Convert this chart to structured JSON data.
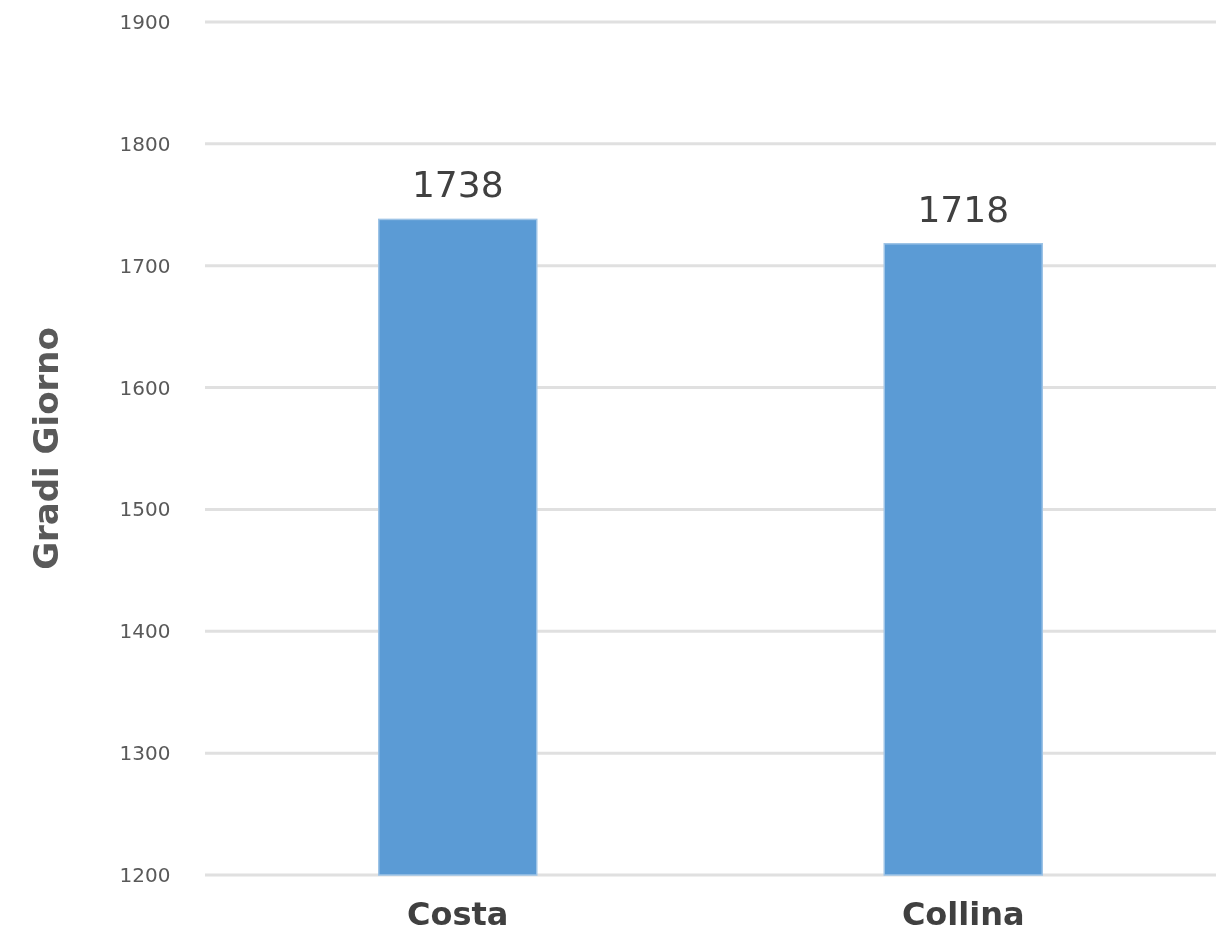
{
  "chart_data": {
    "type": "bar",
    "ylabel": "Gradi Giorno",
    "categories": [
      "Costa",
      "Collina"
    ],
    "values": [
      1738,
      1718
    ],
    "color": "#5b9bd5",
    "ylim": [
      1200,
      1900
    ],
    "yticks": [
      1200,
      1300,
      1400,
      1500,
      1600,
      1700,
      1800,
      1900
    ],
    "grid": true,
    "data_labels": true
  }
}
